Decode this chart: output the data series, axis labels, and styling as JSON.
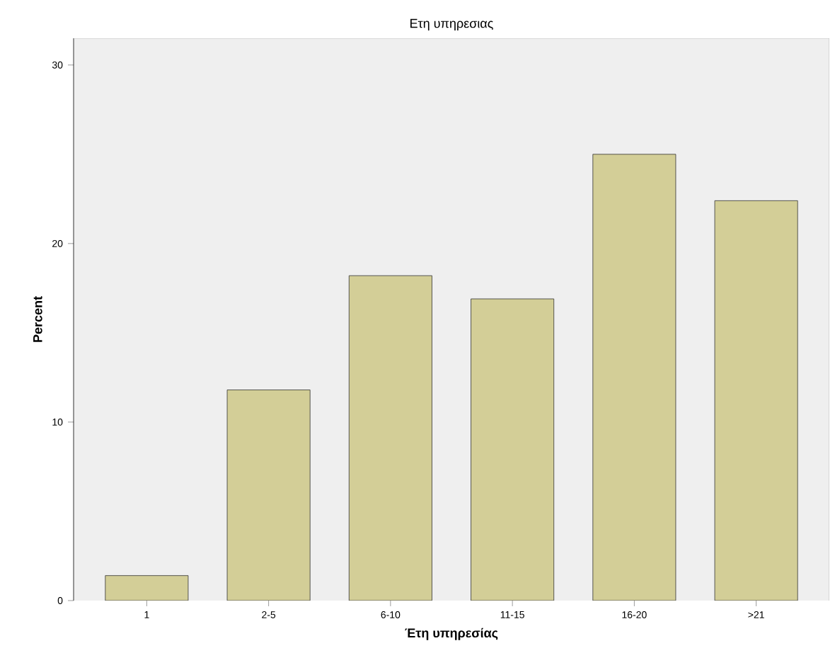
{
  "chart_data": {
    "type": "bar",
    "title": "Ετη υπηρεσιας",
    "xlabel": "Έτη υπηρεσίας",
    "ylabel": "Percent",
    "categories": [
      "1",
      "2-5",
      "6-10",
      "11-15",
      "16-20",
      ">21"
    ],
    "values": [
      1.4,
      11.8,
      18.2,
      16.9,
      25.0,
      22.4
    ],
    "color": "#d3ce97",
    "ylim": [
      0,
      31.5
    ],
    "yticks": [
      0,
      10,
      20,
      30
    ],
    "grid": false
  }
}
